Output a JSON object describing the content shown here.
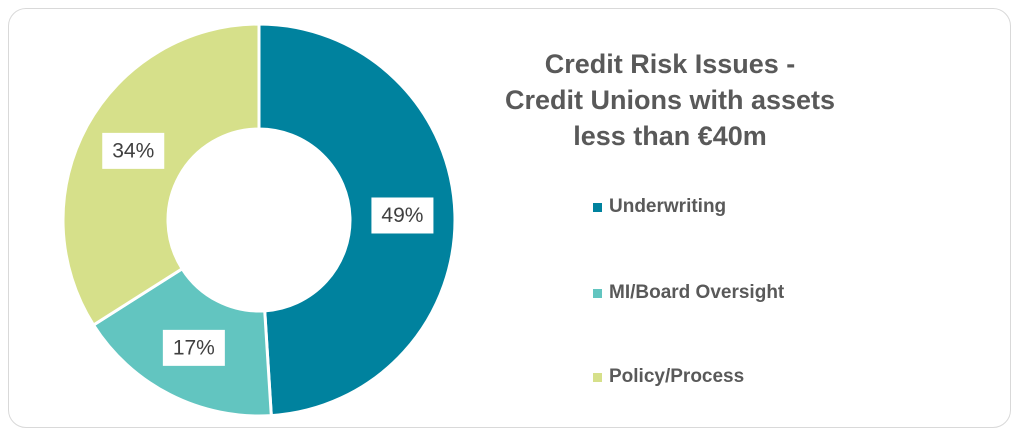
{
  "chart_data": {
    "type": "pie",
    "variant": "donut",
    "title": "Credit Risk Issues - Credit Unions with assets less than €40m",
    "title_lines": [
      "Credit Risk Issues -",
      "Credit Unions with assets",
      "less than €40m"
    ],
    "categories": [
      "Underwriting",
      "MI/Board Oversight",
      "Policy/Process"
    ],
    "values": [
      49,
      17,
      34
    ],
    "value_labels": [
      "49%",
      "17%",
      "34%"
    ],
    "colors": [
      "#00829e",
      "#62c5c0",
      "#d6e08a"
    ],
    "legend_position": "right"
  }
}
